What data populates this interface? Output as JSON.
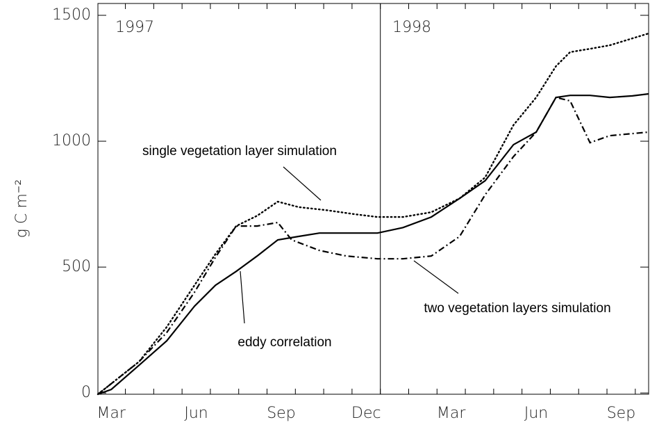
{
  "chart_data": {
    "type": "line",
    "y_label": "g C m⁻²",
    "annotations": [
      "1997",
      "1998"
    ],
    "year_divider": 12,
    "xlim": [
      2.03,
      21.47
    ],
    "xticks": [
      {
        "value": 2.5,
        "label": "Mar"
      },
      {
        "value": 5.5,
        "label": "Jun"
      },
      {
        "value": 8.5,
        "label": "Sep"
      },
      {
        "value": 11.5,
        "label": "Dec"
      },
      {
        "value": 14.5,
        "label": "Mar"
      },
      {
        "value": 17.5,
        "label": "Jun"
      },
      {
        "value": 20.5,
        "label": "Sep"
      }
    ],
    "ylim": [
      -5,
      1547
    ],
    "yticks": [
      0,
      500,
      1000,
      1500
    ],
    "series": [
      {
        "name": "eddy correlation",
        "color": "#000000",
        "style": "solid",
        "x": [
          2.03,
          2.5,
          3.48,
          4.46,
          5.44,
          6.18,
          6.91,
          7.65,
          8.38,
          9.12,
          9.85,
          10.6,
          11.3,
          11.9,
          12.8,
          13.8,
          14.8,
          15.7,
          16.7,
          17.5,
          18.2,
          18.7,
          19.4,
          20.1,
          20.9,
          21.47
        ],
        "values": [
          -5,
          14,
          110,
          207,
          345,
          428,
          483,
          544,
          608,
          622,
          635,
          635,
          635,
          635,
          657,
          699,
          773,
          843,
          986,
          1036,
          1174,
          1182,
          1182,
          1174,
          1180,
          1188
        ]
      },
      {
        "name": "single vegetation layer simulation",
        "color": "#000000",
        "style": "dotted",
        "x": [
          2.03,
          3.48,
          4.46,
          5.44,
          6.18,
          6.91,
          7.65,
          8.38,
          9.12,
          10.1,
          11.1,
          11.9,
          12.8,
          13.8,
          14.8,
          15.7,
          16.7,
          17.5,
          18.2,
          18.7,
          19.4,
          20.1,
          21.47
        ],
        "values": [
          -5,
          124,
          262,
          428,
          552,
          663,
          704,
          760,
          738,
          726,
          710,
          699,
          699,
          718,
          773,
          856,
          1064,
          1174,
          1298,
          1354,
          1367,
          1381,
          1428
        ]
      },
      {
        "name": "two vegetation layers simulation",
        "color": "#000000",
        "style": "dashdot",
        "x": [
          2.03,
          3.48,
          4.46,
          5.44,
          6.18,
          6.91,
          7.65,
          8.38,
          8.87,
          9.85,
          10.8,
          11.9,
          12.8,
          13.8,
          14.8,
          15.7,
          16.7,
          17.5,
          18.2,
          18.7,
          19.4,
          20.1,
          21.47
        ],
        "values": [
          -5,
          124,
          240,
          400,
          539,
          663,
          663,
          677,
          608,
          566,
          544,
          533,
          533,
          544,
          622,
          787,
          939,
          1036,
          1174,
          1160,
          994,
          1022,
          1036
        ]
      }
    ]
  }
}
